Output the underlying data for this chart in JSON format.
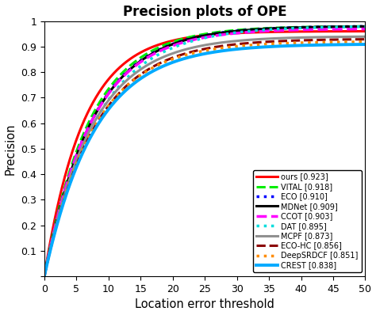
{
  "title": "Precision plots of OPE",
  "xlabel": "Location error threshold",
  "ylabel": "Precision",
  "xlim": [
    0,
    50
  ],
  "ylim": [
    0,
    1
  ],
  "xticks": [
    0,
    5,
    10,
    15,
    20,
    25,
    30,
    35,
    40,
    45,
    50
  ],
  "yticks": [
    0,
    0.1,
    0.2,
    0.3,
    0.4,
    0.5,
    0.6,
    0.7,
    0.8,
    0.9,
    1
  ],
  "trackers": [
    {
      "name": "ours [0.923]",
      "score": 0.923,
      "color": "#FF0000",
      "linestyle": "solid",
      "linewidth": 2.2,
      "asym": 0.96
    },
    {
      "name": "VITAL [0.918]",
      "score": 0.918,
      "color": "#00EE00",
      "linestyle": "dashed",
      "linewidth": 2.2,
      "asym": 0.98
    },
    {
      "name": "ECO [0.910]",
      "score": 0.91,
      "color": "#0000FF",
      "linestyle": "dotted",
      "linewidth": 2.5,
      "asym": 0.98
    },
    {
      "name": "MDNet [0.909]",
      "score": 0.909,
      "color": "#000000",
      "linestyle": "solid",
      "linewidth": 2.2,
      "asym": 0.98
    },
    {
      "name": "CCOT [0.903]",
      "score": 0.903,
      "color": "#FF00FF",
      "linestyle": "dashed",
      "linewidth": 2.5,
      "asym": 0.97
    },
    {
      "name": "DAT [0.895]",
      "score": 0.895,
      "color": "#00DDDD",
      "linestyle": "dotted",
      "linewidth": 2.5,
      "asym": 0.98
    },
    {
      "name": "MCPF [0.873]",
      "score": 0.873,
      "color": "#909090",
      "linestyle": "solid",
      "linewidth": 2.2,
      "asym": 0.94
    },
    {
      "name": "ECO-HC [0.856]",
      "score": 0.856,
      "color": "#8B0000",
      "linestyle": "dashed",
      "linewidth": 2.2,
      "asym": 0.93
    },
    {
      "name": "DeepSRDCF [0.851]",
      "score": 0.851,
      "color": "#FF8C00",
      "linestyle": "dotted",
      "linewidth": 2.5,
      "asym": 0.92
    },
    {
      "name": "CREST [0.838]",
      "score": 0.838,
      "color": "#00AAFF",
      "linestyle": "solid",
      "linewidth": 2.8,
      "asym": 0.91
    }
  ]
}
